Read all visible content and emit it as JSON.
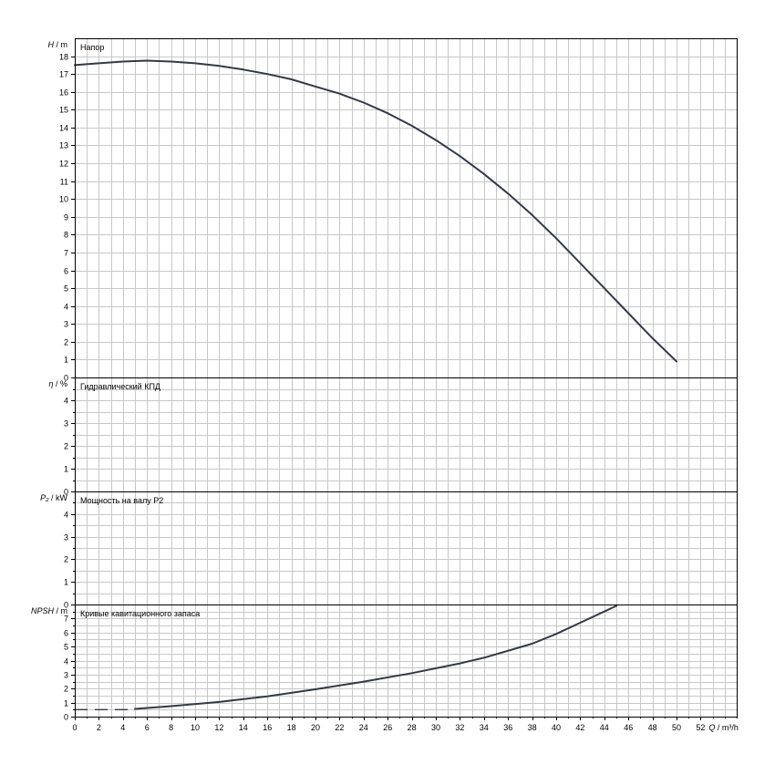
{
  "chart_data": [
    {
      "type": "line",
      "panel": "head",
      "title": "Напор",
      "ylabel_symbol": "H",
      "ylabel_unit": " / m",
      "ylim": [
        0,
        19
      ],
      "yticks": [
        0,
        1,
        2,
        3,
        4,
        5,
        6,
        7,
        8,
        9,
        10,
        11,
        12,
        13,
        14,
        15,
        16,
        17,
        18
      ],
      "series": [
        {
          "x": [
            0,
            2,
            4,
            6,
            8,
            10,
            12,
            14,
            16,
            18,
            20,
            22,
            24,
            26,
            28,
            30,
            32,
            34,
            36,
            38,
            40,
            42,
            44,
            46,
            48,
            50
          ],
          "values": [
            17.5,
            17.6,
            17.7,
            17.75,
            17.7,
            17.6,
            17.45,
            17.25,
            17.0,
            16.7,
            16.3,
            15.9,
            15.4,
            14.8,
            14.1,
            13.3,
            12.4,
            11.4,
            10.3,
            9.1,
            7.8,
            6.4,
            5.0,
            3.6,
            2.2,
            0.9
          ],
          "color": "#333a45"
        }
      ]
    },
    {
      "type": "line",
      "panel": "efficiency",
      "title": "Гидравлический КПД",
      "ylabel_symbol": "η",
      "ylabel_unit": " / %",
      "ylim": [
        0,
        5
      ],
      "yticks": [
        0,
        1,
        2,
        3,
        4
      ],
      "series": []
    },
    {
      "type": "line",
      "panel": "power",
      "title": "Мощность на валу P2",
      "ylabel_symbol": "P₂",
      "ylabel_unit": " / kW",
      "ylim": [
        0,
        5
      ],
      "yticks": [
        0,
        1,
        2,
        3,
        4
      ],
      "series": []
    },
    {
      "type": "line",
      "panel": "npsh",
      "title": "Кривые кавитационного запаса",
      "ylabel_symbol": "NPSH",
      "ylabel_unit": " / m",
      "ylim": [
        0,
        8
      ],
      "yticks": [
        0,
        1,
        2,
        3,
        4,
        5,
        6,
        7
      ],
      "series": [
        {
          "style": "dashed",
          "x": [
            0,
            2,
            4,
            5
          ],
          "values": [
            0.5,
            0.5,
            0.5,
            0.5
          ],
          "color": "#333a45"
        },
        {
          "style": "solid",
          "x": [
            5,
            8,
            12,
            16,
            20,
            24,
            28,
            32,
            34,
            38,
            40,
            42,
            44,
            45
          ],
          "values": [
            0.55,
            0.75,
            1.05,
            1.45,
            1.95,
            2.5,
            3.1,
            3.8,
            4.2,
            5.2,
            5.9,
            6.7,
            7.5,
            7.9
          ],
          "color": "#333a45"
        }
      ]
    }
  ],
  "x_axis": {
    "xlim": [
      0,
      55
    ],
    "ticks": [
      0,
      2,
      4,
      6,
      8,
      10,
      12,
      14,
      16,
      18,
      20,
      22,
      24,
      26,
      28,
      30,
      32,
      34,
      36,
      38,
      40,
      42,
      44,
      46,
      48,
      50,
      52
    ],
    "label_symbol": "Q",
    "label_unit": " / m³/h"
  },
  "grid": true
}
